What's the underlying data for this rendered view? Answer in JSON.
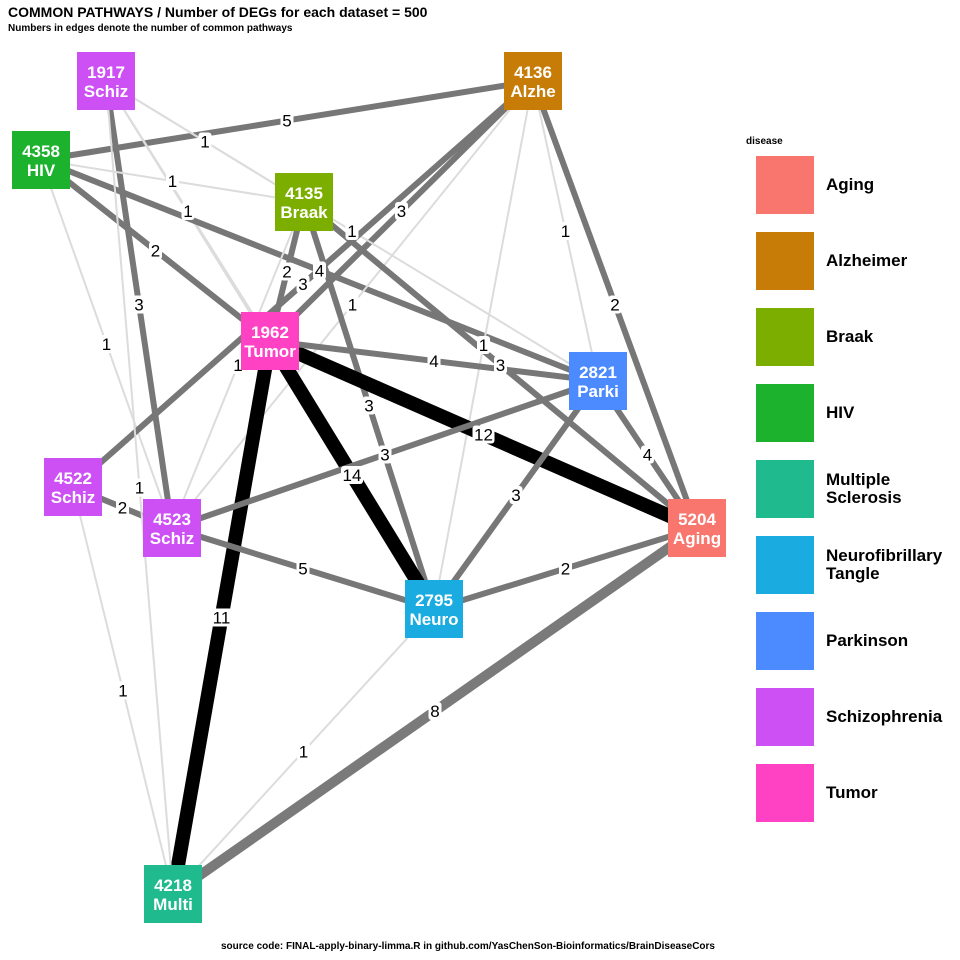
{
  "header": {
    "title": "COMMON PATHWAYS / Number of DEGs for each dataset = 500",
    "subtitle": "Numbers in edges denote the number of common pathways"
  },
  "caption": "source code: FINAL-apply-binary-limma.R in github.com/YasChenSon-Bioinformatics/BrainDiseaseCors",
  "legend": {
    "title": "disease",
    "items": [
      {
        "label": "Aging",
        "color": "#F8766D"
      },
      {
        "label": "Alzheimer",
        "color": "#C77C08"
      },
      {
        "label": "Braak",
        "color": "#7CAE00"
      },
      {
        "label": "HIV",
        "color": "#1DB22E"
      },
      {
        "label": "Multiple Sclerosis",
        "color": "#1FBA8E"
      },
      {
        "label": "Neurofibrillary Tangle",
        "color": "#1AACE0"
      },
      {
        "label": "Parkinson",
        "color": "#4C8BFF"
      },
      {
        "label": "Schizophrenia",
        "color": "#CD50F5"
      },
      {
        "label": "Tumor",
        "color": "#FF42C4"
      }
    ]
  },
  "nodes": [
    {
      "id": "1917",
      "abbr": "Schiz",
      "disease": "Schizophrenia",
      "color": "#CD50F5"
    },
    {
      "id": "4136",
      "abbr": "Alzhe",
      "disease": "Alzheimer",
      "color": "#C77C08"
    },
    {
      "id": "4358",
      "abbr": "HIV",
      "disease": "HIV",
      "color": "#1DB22E"
    },
    {
      "id": "4135",
      "abbr": "Braak",
      "disease": "Braak",
      "color": "#7CAE00"
    },
    {
      "id": "1962",
      "abbr": "Tumor",
      "disease": "Tumor",
      "color": "#FF42C4"
    },
    {
      "id": "2821",
      "abbr": "Parki",
      "disease": "Parkinson",
      "color": "#4C8BFF"
    },
    {
      "id": "4522",
      "abbr": "Schiz",
      "disease": "Schizophrenia",
      "color": "#CD50F5"
    },
    {
      "id": "4523",
      "abbr": "Schiz",
      "disease": "Schizophrenia",
      "color": "#CD50F5"
    },
    {
      "id": "5204",
      "abbr": "Aging",
      "disease": "Aging",
      "color": "#F8766D"
    },
    {
      "id": "2795",
      "abbr": "Neuro",
      "disease": "Neurofibrillary Tangle",
      "color": "#1AACE0"
    },
    {
      "id": "4218",
      "abbr": "Multi",
      "disease": "Multiple Sclerosis",
      "color": "#1FBA8E"
    }
  ],
  "edges": [
    {
      "source": "4358",
      "target": "4136",
      "weight": 5
    },
    {
      "source": "1917",
      "target": "4135",
      "weight": 1
    },
    {
      "source": "1917",
      "target": "1962",
      "weight": 1
    },
    {
      "source": "1917",
      "target": "4523",
      "weight": 3
    },
    {
      "source": "1917",
      "target": "2795",
      "weight": 1
    },
    {
      "source": "4358",
      "target": "1962",
      "weight": 2
    },
    {
      "source": "4358",
      "target": "2821",
      "weight": 4
    },
    {
      "source": "4358",
      "target": "4523",
      "weight": 1
    },
    {
      "source": "4358",
      "target": "4135",
      "weight": 1
    },
    {
      "source": "4136",
      "target": "1962",
      "weight": 3
    },
    {
      "source": "4136",
      "target": "4523",
      "weight": 1
    },
    {
      "source": "4136",
      "target": "2821",
      "weight": 1
    },
    {
      "source": "4136",
      "target": "5204",
      "weight": 2
    },
    {
      "source": "4136",
      "target": "2795",
      "weight": 1
    },
    {
      "source": "4135",
      "target": "1962",
      "weight": 2
    },
    {
      "source": "4135",
      "target": "2795",
      "weight": 3
    },
    {
      "source": "4135",
      "target": "5204",
      "weight": 3
    },
    {
      "source": "4135",
      "target": "4523",
      "weight": 1
    },
    {
      "source": "1962",
      "target": "5204",
      "weight": 12
    },
    {
      "source": "1962",
      "target": "2795",
      "weight": 14
    },
    {
      "source": "1962",
      "target": "4218",
      "weight": 11
    },
    {
      "source": "1962",
      "target": "2821",
      "weight": 4
    },
    {
      "source": "1917",
      "target": "2821",
      "weight": 1
    },
    {
      "source": "2821",
      "target": "5204",
      "weight": 4
    },
    {
      "source": "2821",
      "target": "2795",
      "weight": 3
    },
    {
      "source": "2821",
      "target": "4523",
      "weight": 3
    },
    {
      "source": "4136",
      "target": "4522",
      "weight": 3
    },
    {
      "source": "4522",
      "target": "4523",
      "weight": 2
    },
    {
      "source": "4522",
      "target": "4218",
      "weight": 1
    },
    {
      "source": "4523",
      "target": "2795",
      "weight": 5
    },
    {
      "source": "2795",
      "target": "5204",
      "weight": 2
    },
    {
      "source": "4218",
      "target": "5204",
      "weight": 8
    },
    {
      "source": "4218",
      "target": "2795",
      "weight": 1
    },
    {
      "source": "1917",
      "target": "4218",
      "weight": 1
    }
  ]
}
